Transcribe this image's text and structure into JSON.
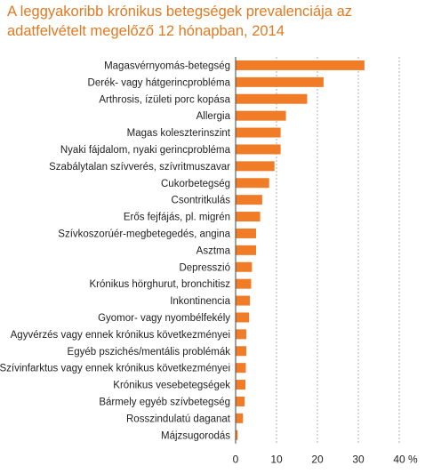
{
  "chart_data": {
    "type": "bar",
    "orientation": "horizontal",
    "title": "A leggyakoribb krónikus betegségek prevalenciája az adatfelvételt megelőző 12 hónapban, 2014",
    "categories": [
      "Magasvérnyomás-betegség",
      "Derék- vagy hátgerincprobléma",
      "Arthrosis, ízületi porc kopása",
      "Allergia",
      "Magas koleszterinszint",
      "Nyaki fájdalom, nyaki gerincprobléma",
      "Szabálytalan szívverés, szívritmuszavar",
      "Cukorbetegség",
      "Csontritkulás",
      "Erős fejfájás, pl. migrén",
      "Szívkoszorúér-megbetegedés, angina",
      "Asztma",
      "Depresszió",
      "Krónikus hörghurut, bronchitisz",
      "Inkontinencia",
      "Gyomor- vagy nyombélfekély",
      "Agyvérzés vagy ennek krónikus következményei",
      "Egyéb pszichés/mentális problémák",
      "Szívinfarktus vagy ennek krónikus következményei",
      "Krónikus vesebetegségek",
      "Bármely egyéb szívbetegség",
      "Rosszindulatú daganat",
      "Májzsugorodás"
    ],
    "values": [
      31.5,
      21.5,
      17.5,
      12.3,
      11.0,
      11.0,
      9.5,
      8.2,
      6.5,
      6.0,
      5.0,
      5.0,
      4.0,
      3.8,
      3.5,
      3.3,
      2.6,
      2.6,
      2.5,
      2.4,
      2.2,
      1.8,
      0.5
    ],
    "xlim": [
      0,
      40
    ],
    "xticks": [
      "0",
      "10",
      "20",
      "30",
      "40"
    ],
    "xunit": "%",
    "bar_color": "#f07c28",
    "grid": "vertical dashed"
  }
}
